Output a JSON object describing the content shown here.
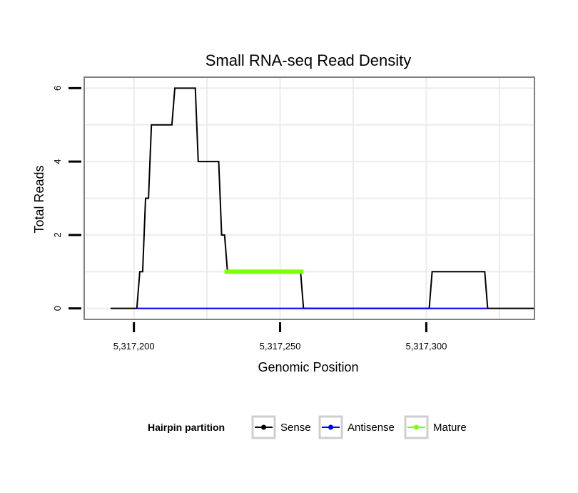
{
  "chart_data": {
    "type": "line",
    "title": "Small RNA-seq Read Density",
    "xlabel": "Genomic Position",
    "ylabel": "Total Reads",
    "xlim": [
      5317183,
      5317337
    ],
    "ylim": [
      -0.3,
      6.3
    ],
    "xticks": [
      5317200,
      5317250,
      5317300
    ],
    "xtick_labels": [
      "5,317,200",
      "5,317,250",
      "5,317,300"
    ],
    "yticks": [
      0,
      2,
      4,
      6
    ],
    "ytick_labels": [
      "0",
      "2",
      "4",
      "6"
    ],
    "grid": true,
    "series": [
      {
        "name": "Sense",
        "color": "#000000",
        "points": [
          [
            5317192,
            0
          ],
          [
            5317201,
            0
          ],
          [
            5317202,
            1
          ],
          [
            5317203,
            1
          ],
          [
            5317204,
            3
          ],
          [
            5317205,
            3
          ],
          [
            5317206,
            5
          ],
          [
            5317213,
            5
          ],
          [
            5317214,
            6
          ],
          [
            5317221,
            6
          ],
          [
            5317222,
            4
          ],
          [
            5317229,
            4
          ],
          [
            5317230,
            2
          ],
          [
            5317231,
            2
          ],
          [
            5317232,
            1
          ],
          [
            5317257,
            1
          ],
          [
            5317258,
            0
          ],
          [
            5317301,
            0
          ],
          [
            5317302,
            1
          ],
          [
            5317320,
            1
          ],
          [
            5317321,
            0
          ],
          [
            5317337,
            0
          ]
        ]
      },
      {
        "name": "Antisense",
        "color": "#0000ff",
        "points": [
          [
            5317201,
            0
          ],
          [
            5317321,
            0
          ]
        ]
      },
      {
        "name": "Mature",
        "color": "#7fff00",
        "points": [
          [
            5317231,
            1
          ],
          [
            5317258,
            1
          ]
        ]
      }
    ],
    "legend": {
      "title": "Hairpin partition",
      "position": "bottom",
      "entries": [
        "Sense",
        "Antisense",
        "Mature"
      ]
    }
  }
}
